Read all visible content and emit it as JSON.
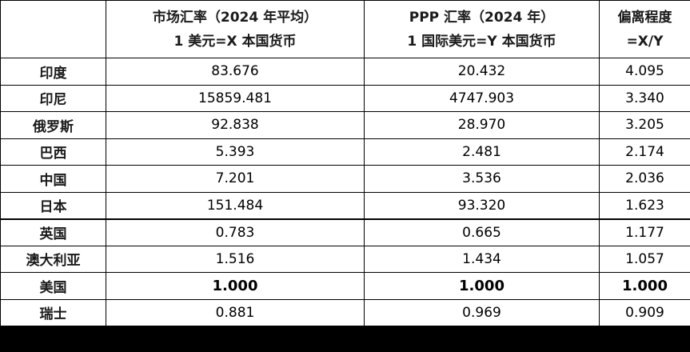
{
  "header": {
    "col1_line1": "市场汇率（2024 年平均）",
    "col1_line2": "1 美元=X 本国货币",
    "col2_line1": "PPP 汇率（2024 年）",
    "col2_line2": "1 国际美元=Y 本国货币",
    "col3_line1": "偏离程度",
    "col3_line2": "=X/Y"
  },
  "rows": [
    {
      "country": "印度",
      "market": "83.676",
      "ppp": "20.432",
      "ratio": "4.095"
    },
    {
      "country": "印尼",
      "market": "15859.481",
      "ppp": "4747.903",
      "ratio": "3.340"
    },
    {
      "country": "俄罗斯",
      "market": "92.838",
      "ppp": "28.970",
      "ratio": "3.205"
    },
    {
      "country": "巴西",
      "market": "5.393",
      "ppp": "2.481",
      "ratio": "2.174"
    },
    {
      "country": "中国",
      "market": "7.201",
      "ppp": "3.536",
      "ratio": "2.036"
    },
    {
      "country": "日本",
      "market": "151.484",
      "ppp": "93.320",
      "ratio": "1.623"
    },
    {
      "country": "英国",
      "market": "0.783",
      "ppp": "0.665",
      "ratio": "1.177"
    },
    {
      "country": "澳大利亚",
      "market": "1.516",
      "ppp": "1.434",
      "ratio": "1.057"
    },
    {
      "country": "美国",
      "market": "1.000",
      "ppp": "1.000",
      "ratio": "1.000"
    },
    {
      "country": "瑞士",
      "market": "0.881",
      "ppp": "0.969",
      "ratio": "0.909"
    }
  ]
}
